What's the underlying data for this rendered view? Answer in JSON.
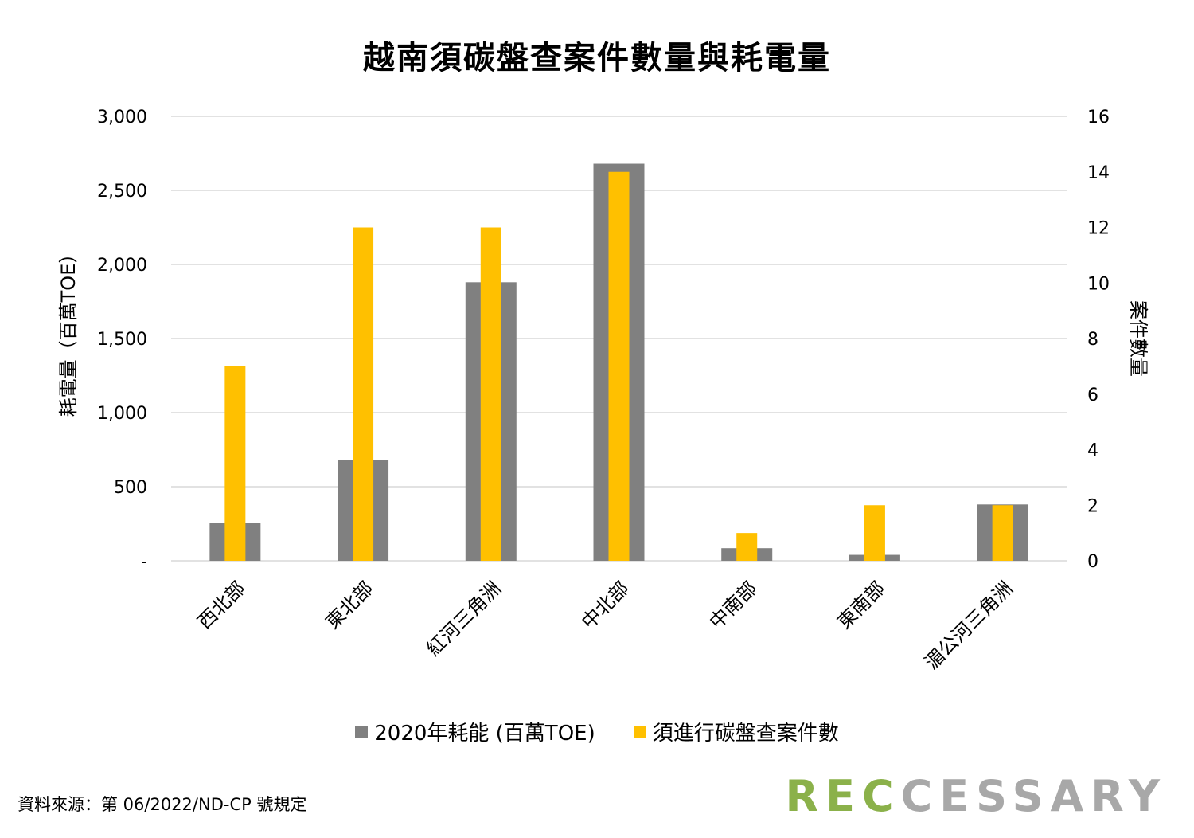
{
  "title": "越南須碳盤查案件數量與耗電量",
  "chart_data": {
    "type": "bar",
    "title": "越南須碳盤查案件數量與耗電量",
    "categories": [
      "西北部",
      "東北部",
      "紅河三角洲",
      "中北部",
      "中南部",
      "東南部",
      "湄公河三角洲"
    ],
    "series": [
      {
        "name": "2020年耗能 (百萬TOE)",
        "axis": "left",
        "color": "#808080",
        "values": [
          255,
          680,
          1880,
          2680,
          85,
          40,
          380
        ]
      },
      {
        "name": "須進行碳盤查案件數",
        "axis": "right",
        "color": "#ffc000",
        "values": [
          7,
          12,
          12,
          14,
          1,
          2,
          2
        ]
      }
    ],
    "ylabel": "耗電量（百萬TOE）",
    "ylabel_right": "案件數量",
    "ylim": [
      0,
      3000
    ],
    "ylim_right": [
      0,
      16
    ],
    "yticks": [
      {
        "value": 0,
        "label": "-"
      },
      {
        "value": 500,
        "label": "500"
      },
      {
        "value": 1000,
        "label": "1,000"
      },
      {
        "value": 1500,
        "label": "1,500"
      },
      {
        "value": 2000,
        "label": "2,000"
      },
      {
        "value": 2500,
        "label": "2,500"
      },
      {
        "value": 3000,
        "label": "3,000"
      }
    ],
    "yticks_right": [
      "0",
      "2",
      "4",
      "6",
      "8",
      "10",
      "12",
      "14",
      "16"
    ],
    "grid": true,
    "legend_position": "bottom"
  },
  "source_text": "資料來源：第 06/2022/ND-CP 號規定",
  "logo": {
    "part1": "REC",
    "part2": "CESSARY"
  }
}
